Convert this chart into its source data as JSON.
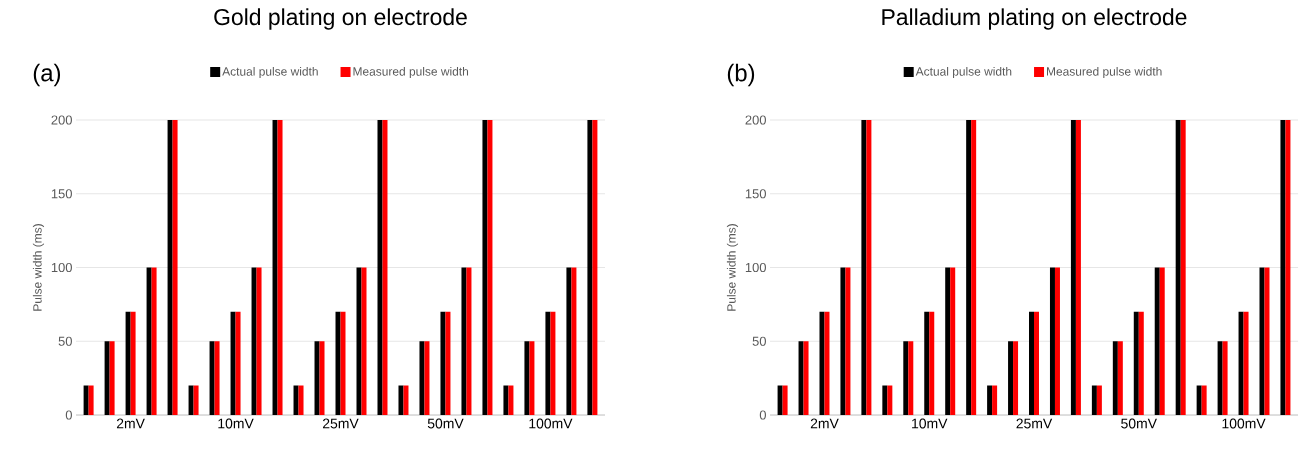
{
  "chart_data": [
    {
      "type": "bar",
      "title": "Gold plating on electrode",
      "ylabel": "Pulse width (ms)",
      "annotations": [
        "(a)"
      ],
      "categories": [
        null,
        null,
        "2mV",
        null,
        null,
        null,
        null,
        "10mV",
        null,
        null,
        null,
        null,
        "25mV",
        null,
        null,
        null,
        null,
        "50mV",
        null,
        null,
        null,
        null,
        "100mV",
        null,
        null
      ],
      "series": [
        {
          "name": "Actual pulse width",
          "color": "#000000",
          "values": [
            20,
            50,
            70,
            100,
            200,
            20,
            50,
            70,
            100,
            200,
            20,
            50,
            70,
            100,
            200,
            20,
            50,
            70,
            100,
            200,
            20,
            50,
            70,
            100,
            200
          ]
        },
        {
          "name": "Measured pulse width",
          "color": "#ff0000",
          "values": [
            20,
            50,
            70,
            100,
            200,
            20,
            50,
            70,
            100,
            200,
            20,
            50,
            70,
            100,
            200,
            20,
            50,
            70,
            100,
            200,
            20,
            50,
            70,
            100,
            200
          ]
        }
      ],
      "ylim": [
        0,
        200
      ],
      "yticks": [
        0,
        50,
        100,
        150,
        200
      ],
      "grid": "y",
      "legend": "top"
    },
    {
      "type": "bar",
      "title": "Palladium plating on electrode",
      "ylabel": "Pulse width (ms)",
      "annotations": [
        "(b)"
      ],
      "categories": [
        null,
        null,
        "2mV",
        null,
        null,
        null,
        null,
        "10mV",
        null,
        null,
        null,
        null,
        "25mV",
        null,
        null,
        null,
        null,
        "50mV",
        null,
        null,
        null,
        null,
        "100mV",
        null,
        null
      ],
      "series": [
        {
          "name": "Actual pulse width",
          "color": "#000000",
          "values": [
            20,
            50,
            70,
            100,
            200,
            20,
            50,
            70,
            100,
            200,
            20,
            50,
            70,
            100,
            200,
            20,
            50,
            70,
            100,
            200,
            20,
            50,
            70,
            100,
            200
          ]
        },
        {
          "name": "Measured pulse width",
          "color": "#ff0000",
          "values": [
            20,
            50,
            70,
            100,
            200,
            20,
            50,
            70,
            100,
            200,
            20,
            50,
            70,
            100,
            200,
            20,
            50,
            70,
            100,
            200,
            20,
            50,
            70,
            100,
            200
          ]
        }
      ],
      "ylim": [
        0,
        200
      ],
      "yticks": [
        0,
        50,
        100,
        150,
        200
      ],
      "grid": "y",
      "legend": "top"
    }
  ]
}
